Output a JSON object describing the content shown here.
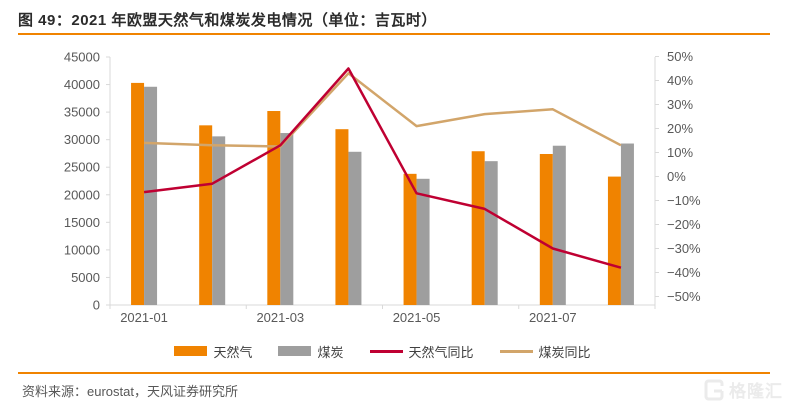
{
  "header": {
    "title": "图 49：2021 年欧盟天然气和煤炭发电情况（单位：吉瓦时）"
  },
  "footer": {
    "source_label": "资料来源：eurostat，天风证券研究所"
  },
  "watermark": {
    "brand": "格隆汇"
  },
  "colors": {
    "accent_orange": "#f08300",
    "bar_gas": "#f08300",
    "bar_coal": "#9e9e9e",
    "line_gas_yoy": "#bf0032",
    "line_coal_yoy": "#d2a56a",
    "axis_text": "#595959",
    "axis_line": "#d9d9d9"
  },
  "chart_data": {
    "type": "bar",
    "subtype": "combo-bar-line-dual-axis",
    "title": "2021 年欧盟天然气和煤炭发电情况",
    "unit": "吉瓦时",
    "categories": [
      "2021-01",
      "2021-02",
      "2021-03",
      "2021-04",
      "2021-05",
      "2021-06",
      "2021-07",
      "2021-08"
    ],
    "x_tick_labels_shown": [
      "2021-01",
      "2021-03",
      "2021-05",
      "2021-07"
    ],
    "series": [
      {
        "name": "天然气",
        "type": "bar",
        "axis": "left",
        "color": "#f08300",
        "values": [
          40300,
          32600,
          35200,
          31900,
          23800,
          27900,
          27400,
          23300
        ]
      },
      {
        "name": "煤炭",
        "type": "bar",
        "axis": "left",
        "color": "#9e9e9e",
        "values": [
          39600,
          30600,
          31200,
          27800,
          22900,
          26100,
          28900,
          29300
        ]
      },
      {
        "name": "天然气同比",
        "type": "line",
        "axis": "right",
        "color": "#bf0032",
        "values": [
          -6.5,
          -3,
          13,
          45,
          -7,
          -13.5,
          -30,
          -38
        ]
      },
      {
        "name": "煤炭同比",
        "type": "line",
        "axis": "right",
        "color": "#d2a56a",
        "values": [
          14,
          13,
          12.5,
          43,
          21,
          26,
          28,
          13
        ]
      }
    ],
    "left_axis": {
      "min": 0,
      "max": 45000,
      "step": 5000,
      "tick_labels": [
        "0",
        "5000",
        "10000",
        "15000",
        "20000",
        "25000",
        "30000",
        "35000",
        "40000",
        "45000"
      ]
    },
    "right_axis": {
      "min": -50,
      "max": 50,
      "step": 10,
      "unit": "%",
      "tick_labels": [
        "−50%",
        "−40%",
        "−30%",
        "−20%",
        "−10%",
        "0%",
        "10%",
        "20%",
        "30%",
        "40%",
        "50%"
      ]
    },
    "grid": false,
    "legend_position": "bottom",
    "legend": [
      {
        "label": "天然气",
        "type": "bar",
        "color": "#f08300"
      },
      {
        "label": "煤炭",
        "type": "bar",
        "color": "#9e9e9e"
      },
      {
        "label": "天然气同比",
        "type": "line",
        "color": "#bf0032"
      },
      {
        "label": "煤炭同比",
        "type": "line",
        "color": "#d2a56a"
      }
    ]
  }
}
